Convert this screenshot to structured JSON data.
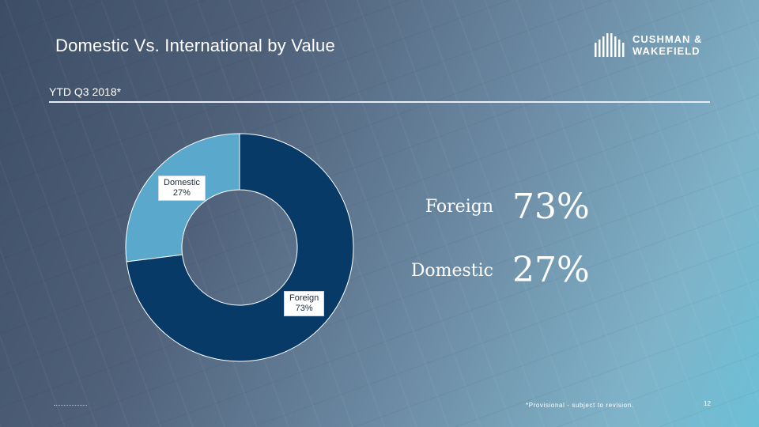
{
  "header": {
    "title": "Domestic Vs. International by Value",
    "subtitle": "YTD Q3 2018*"
  },
  "brand": {
    "line1": "CUSHMAN &",
    "line2": "WAKEFIELD",
    "icon": "building-logo-icon"
  },
  "chart_data": {
    "type": "pie",
    "categories": [
      "Domestic",
      "Foreign"
    ],
    "values": [
      27,
      73
    ],
    "colors": [
      "#5aa8cc",
      "#073a67"
    ],
    "data_labels": [
      "27%",
      "73%"
    ],
    "donut": true
  },
  "legend": [
    {
      "label": "Foreign",
      "value": "73%"
    },
    {
      "label": "Domestic",
      "value": "27%"
    }
  ],
  "footer": {
    "footnote": "*Provisional - subject to revision.",
    "page_number": "12"
  }
}
